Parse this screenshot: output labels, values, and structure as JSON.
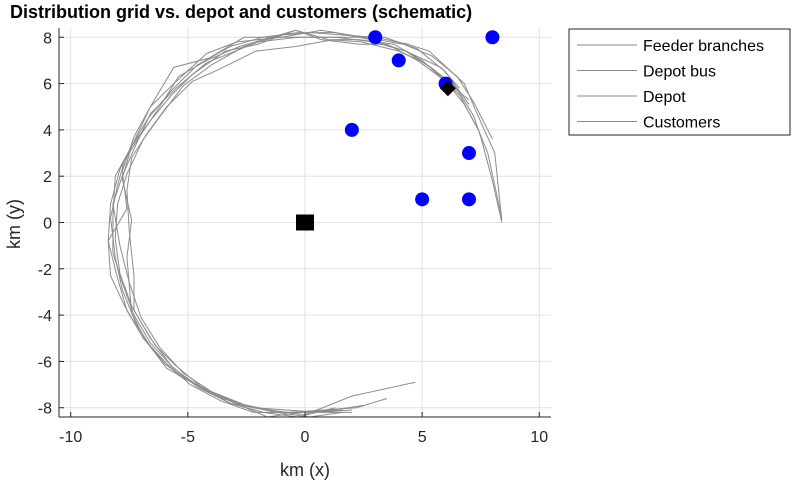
{
  "chart_data": {
    "type": "line",
    "title": "Distribution grid vs. depot and customers (schematic)",
    "xlabel": "km (x)",
    "ylabel": "km (y)",
    "xlim": [
      -10.5,
      10.5
    ],
    "ylim": [
      -8.4,
      8.4
    ],
    "xticks": [
      -10,
      -5,
      0,
      5,
      10
    ],
    "yticks": [
      -8,
      -6,
      -4,
      -2,
      0,
      2,
      4,
      6,
      8
    ],
    "xtick_labels": [
      "-10",
      "-5",
      "0",
      "5",
      "10"
    ],
    "ytick_labels": [
      "-8",
      "-6",
      "-4",
      "-2",
      "0",
      "2",
      "4",
      "6",
      "8"
    ],
    "grid": true,
    "legend_position": "outside top-right",
    "colors": {
      "feeder": "#8c8c8c",
      "customer": "#0000ff",
      "depot": "#000000",
      "depot_bus": "#000000"
    },
    "series": [
      {
        "name": "Feeder branches",
        "type": "line",
        "lines": [
          [
            [
              8.4,
              0.1
            ],
            [
              8.1,
              3.0
            ],
            [
              7.3,
              4.8
            ],
            [
              6.8,
              6.0
            ],
            [
              5.3,
              7.4
            ],
            [
              4.4,
              7.7
            ],
            [
              3.0,
              8.0
            ],
            [
              1.6,
              8.1
            ],
            [
              0.3,
              8.2
            ],
            [
              -1.0,
              8.1
            ],
            [
              -2.6,
              7.6
            ],
            [
              -4.0,
              6.8
            ],
            [
              -5.2,
              5.9
            ],
            [
              -6.1,
              4.7
            ],
            [
              -6.9,
              3.6
            ],
            [
              -7.6,
              2.1
            ],
            [
              -8.0,
              0.8
            ],
            [
              -8.1,
              -0.7
            ],
            [
              -7.9,
              -2.2
            ],
            [
              -7.4,
              -3.6
            ],
            [
              -6.6,
              -5.0
            ],
            [
              -5.7,
              -6.2
            ],
            [
              -4.6,
              -7.1
            ],
            [
              -3.2,
              -7.8
            ],
            [
              -1.8,
              -8.2
            ],
            [
              -0.3,
              -8.2
            ],
            [
              1.2,
              -8.1
            ],
            [
              2.5,
              -7.9
            ]
          ],
          [
            [
              8.0,
              3.6
            ],
            [
              7.6,
              4.4
            ],
            [
              7.2,
              5.2
            ],
            [
              6.5,
              6.3
            ],
            [
              5.4,
              7.2
            ],
            [
              4.2,
              7.7
            ],
            [
              2.5,
              8.0
            ],
            [
              0.7,
              8.3
            ],
            [
              -1.0,
              8.0
            ],
            [
              -2.9,
              7.8
            ],
            [
              -4.2,
              7.3
            ],
            [
              -5.6,
              6.0
            ],
            [
              -6.6,
              5.0
            ],
            [
              -7.3,
              3.5
            ],
            [
              -7.9,
              2.3
            ],
            [
              -8.3,
              0.8
            ],
            [
              -8.4,
              -0.8
            ],
            [
              -8.0,
              -2.4
            ],
            [
              -7.6,
              -3.8
            ],
            [
              -6.9,
              -5.0
            ],
            [
              -6.0,
              -6.1
            ],
            [
              -5.0,
              -6.8
            ],
            [
              -4.0,
              -7.3
            ],
            [
              -2.9,
              -7.8
            ],
            [
              -1.5,
              -8.1
            ],
            [
              0.0,
              -8.3
            ],
            [
              2.0,
              -7.5
            ],
            [
              4.7,
              -6.9
            ]
          ],
          [
            [
              8.4,
              0.0
            ],
            [
              8.0,
              1.8
            ],
            [
              7.5,
              3.7
            ],
            [
              7.2,
              4.6
            ],
            [
              6.4,
              5.9
            ],
            [
              5.1,
              6.9
            ],
            [
              4.0,
              7.4
            ],
            [
              2.4,
              7.8
            ],
            [
              1.0,
              7.9
            ],
            [
              -0.4,
              8.3
            ],
            [
              -2.0,
              7.7
            ],
            [
              -3.4,
              7.4
            ],
            [
              -4.8,
              6.4
            ],
            [
              -5.7,
              5.5
            ],
            [
              -6.6,
              4.4
            ],
            [
              -7.4,
              3.3
            ],
            [
              -7.8,
              1.9
            ],
            [
              -7.4,
              0.1
            ],
            [
              -7.6,
              -1.5
            ],
            [
              -7.4,
              -3.9
            ],
            [
              -6.8,
              -5.1
            ],
            [
              -5.9,
              -6.3
            ],
            [
              -4.8,
              -6.9
            ],
            [
              -3.5,
              -7.6
            ],
            [
              -2.2,
              -8.0
            ],
            [
              -0.8,
              -8.1
            ],
            [
              0.7,
              -8.2
            ],
            [
              2.0,
              -8.2
            ]
          ],
          [
            [
              7.4,
              4.0
            ],
            [
              6.8,
              5.1
            ],
            [
              6.1,
              6.0
            ],
            [
              5.0,
              7.0
            ],
            [
              3.8,
              7.7
            ],
            [
              2.3,
              7.9
            ],
            [
              1.2,
              7.9
            ],
            [
              -0.4,
              7.6
            ],
            [
              -2.1,
              7.4
            ],
            [
              -3.7,
              6.6
            ],
            [
              -4.8,
              6.1
            ],
            [
              -5.9,
              5.0
            ],
            [
              -6.7,
              3.9
            ],
            [
              -7.4,
              2.8
            ],
            [
              -7.6,
              1.4
            ],
            [
              -7.5,
              -0.4
            ],
            [
              -7.3,
              -2.3
            ],
            [
              -7.3,
              -3.8
            ],
            [
              -6.4,
              -5.3
            ],
            [
              -5.5,
              -6.2
            ],
            [
              -4.3,
              -7.2
            ],
            [
              -3.0,
              -7.8
            ],
            [
              -1.6,
              -8.4
            ],
            [
              -0.2,
              -8.2
            ],
            [
              1.6,
              -8.1
            ]
          ],
          [
            [
              7.0,
              5.3
            ],
            [
              6.0,
              6.1
            ],
            [
              4.8,
              7.0
            ],
            [
              3.5,
              7.7
            ],
            [
              2.3,
              7.7
            ],
            [
              0.7,
              7.9
            ],
            [
              -0.4,
              8.3
            ],
            [
              -2.8,
              7.6
            ],
            [
              -4.2,
              7.0
            ],
            [
              -5.4,
              6.3
            ],
            [
              -6.2,
              5.0
            ],
            [
              -7.0,
              3.8
            ],
            [
              -7.7,
              2.7
            ],
            [
              -8.0,
              1.6
            ],
            [
              -8.3,
              0.2
            ],
            [
              -8.1,
              -1.5
            ],
            [
              -7.8,
              -2.9
            ],
            [
              -7.2,
              -4.4
            ],
            [
              -6.5,
              -5.5
            ],
            [
              -5.4,
              -6.6
            ],
            [
              -4.1,
              -7.3
            ],
            [
              -2.7,
              -7.9
            ],
            [
              -1.2,
              -8.2
            ],
            [
              0.2,
              -8.4
            ],
            [
              1.6,
              -8.2
            ]
          ],
          [
            [
              7.0,
              5.1
            ],
            [
              6.0,
              6.5
            ],
            [
              4.8,
              7.5
            ],
            [
              3.4,
              8.0
            ],
            [
              2.0,
              8.0
            ],
            [
              0.6,
              8.0
            ],
            [
              -2.6,
              8.0
            ],
            [
              -4.1,
              7.1
            ],
            [
              -5.6,
              6.7
            ],
            [
              -6.6,
              5.0
            ],
            [
              -7.3,
              3.7
            ],
            [
              -7.8,
              2.2
            ],
            [
              -7.6,
              0.6
            ],
            [
              -8.4,
              -0.8
            ],
            [
              -8.3,
              -2.3
            ],
            [
              -7.7,
              -3.6
            ],
            [
              -6.9,
              -5.0
            ],
            [
              -5.9,
              -6.1
            ],
            [
              -4.9,
              -7.0
            ],
            [
              -3.6,
              -7.7
            ],
            [
              -2.2,
              -8.2
            ],
            [
              -0.7,
              -8.2
            ],
            [
              0.8,
              -8.1
            ],
            [
              2.2,
              -8.0
            ],
            [
              3.5,
              -7.6
            ]
          ],
          [
            [
              8.4,
              0.2
            ],
            [
              8.1,
              1.6
            ],
            [
              7.8,
              3.0
            ],
            [
              7.4,
              4.0
            ],
            [
              6.6,
              5.5
            ],
            [
              5.5,
              6.6
            ],
            [
              4.3,
              7.4
            ],
            [
              2.8,
              7.9
            ],
            [
              1.3,
              8.2
            ],
            [
              -0.3,
              8.2
            ],
            [
              -1.8,
              8.0
            ],
            [
              -3.2,
              7.6
            ],
            [
              -4.6,
              6.8
            ],
            [
              -5.7,
              5.7
            ],
            [
              -6.7,
              4.5
            ],
            [
              -7.4,
              3.3
            ],
            [
              -8.1,
              2.0
            ],
            [
              -8.2,
              0.2
            ],
            [
              -8.2,
              -1.3
            ],
            [
              -7.8,
              -2.6
            ],
            [
              -7.3,
              -4.0
            ],
            [
              -6.6,
              -5.2
            ],
            [
              -5.6,
              -6.3
            ],
            [
              -4.5,
              -7.1
            ],
            [
              -3.2,
              -7.8
            ],
            [
              -1.8,
              -8.2
            ],
            [
              -0.3,
              -8.4
            ],
            [
              1.3,
              -8.0
            ]
          ],
          [
            [
              6.6,
              5.8
            ],
            [
              5.8,
              6.7
            ],
            [
              4.3,
              7.4
            ],
            [
              2.9,
              7.8
            ],
            [
              1.3,
              8.0
            ],
            [
              -0.3,
              8.0
            ],
            [
              -2.0,
              7.8
            ],
            [
              -4.2,
              6.9
            ],
            [
              -5.5,
              5.8
            ],
            [
              -6.6,
              4.7
            ],
            [
              -7.2,
              3.4
            ],
            [
              -7.8,
              2.0
            ],
            [
              -8.2,
              0.8
            ],
            [
              -7.9,
              -1.0
            ],
            [
              -7.5,
              -2.6
            ],
            [
              -7.0,
              -4.1
            ],
            [
              -6.2,
              -5.4
            ],
            [
              -5.2,
              -6.5
            ],
            [
              -4.0,
              -7.3
            ],
            [
              -2.5,
              -7.9
            ],
            [
              -1.0,
              -8.2
            ],
            [
              0.5,
              -8.2
            ],
            [
              2.0,
              -8.1
            ]
          ]
        ]
      },
      {
        "name": "Depot bus",
        "type": "marker",
        "shape": "diamond",
        "points": [
          [
            6.1,
            5.8
          ]
        ]
      },
      {
        "name": "Depot",
        "type": "marker",
        "shape": "square",
        "points": [
          [
            0,
            0
          ]
        ]
      },
      {
        "name": "Customers",
        "type": "scatter",
        "points": [
          [
            3,
            8
          ],
          [
            8,
            8
          ],
          [
            4,
            7
          ],
          [
            6,
            6
          ],
          [
            2,
            4
          ],
          [
            7,
            3
          ],
          [
            5,
            1
          ],
          [
            7,
            1
          ]
        ]
      }
    ],
    "legend": [
      "Feeder branches",
      "Depot bus",
      "Depot",
      "Customers"
    ]
  }
}
